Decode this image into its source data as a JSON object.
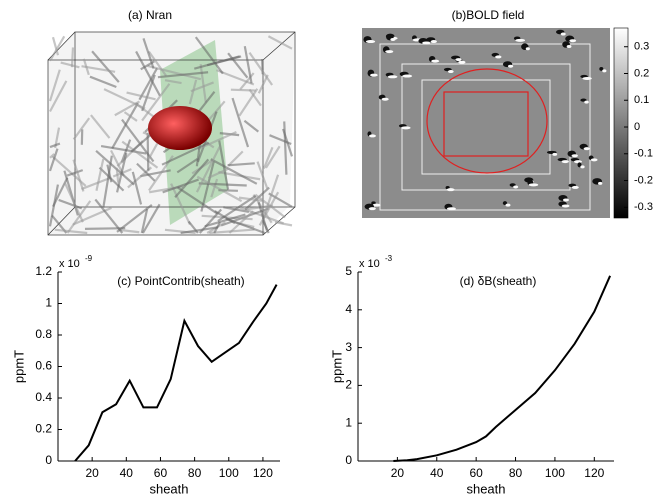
{
  "panels": [
    {
      "title": "(a) Nran"
    },
    {
      "title": "(b)BOLD field",
      "colorbar": {
        "lim": [
          -0.34,
          0.37
        ],
        "ticks": [
          0.3,
          0.2,
          0.1,
          0,
          -0.1,
          -0.2,
          -0.3
        ]
      }
    }
  ],
  "chart_data": [
    {
      "type": "line",
      "title": "(c) PointContrib(sheath)",
      "xlabel": "sheath",
      "ylabel": "ppmT",
      "y_multiplier": "x 10",
      "y_exponent": "-9",
      "x": [
        10,
        18,
        26,
        34,
        42,
        50,
        58,
        66,
        74,
        82,
        90,
        98,
        106,
        114,
        122,
        128
      ],
      "series": [
        {
          "color": "#000000",
          "values": [
            0,
            0.1,
            0.31,
            0.36,
            0.51,
            0.34,
            0.34,
            0.52,
            0.89,
            0.73,
            0.63,
            0.69,
            0.75,
            0.88,
            1.0,
            1.12
          ]
        }
      ],
      "xlim": [
        0,
        130
      ],
      "xticks": [
        20,
        40,
        60,
        80,
        100,
        120
      ],
      "ylim": [
        0,
        1.2
      ],
      "yticks": [
        0,
        0.2,
        0.4,
        0.6,
        0.8,
        1,
        1.2
      ]
    },
    {
      "type": "line",
      "title": "(d) δB(sheath)",
      "xlabel": "sheath",
      "ylabel": "ppmT",
      "y_multiplier": "x 10",
      "y_exponent": "-3",
      "x": [
        18,
        25,
        30,
        40,
        50,
        60,
        65,
        70,
        80,
        90,
        100,
        110,
        120,
        128
      ],
      "series": [
        {
          "color": "#000000",
          "values": [
            0,
            0.02,
            0.05,
            0.15,
            0.3,
            0.5,
            0.65,
            0.9,
            1.35,
            1.8,
            2.4,
            3.1,
            3.95,
            4.9
          ]
        }
      ],
      "xlim": [
        0,
        130
      ],
      "xticks": [
        20,
        40,
        60,
        80,
        100,
        120
      ],
      "ylim": [
        0,
        5
      ],
      "yticks": [
        0,
        1,
        2,
        3,
        4,
        5
      ]
    }
  ]
}
